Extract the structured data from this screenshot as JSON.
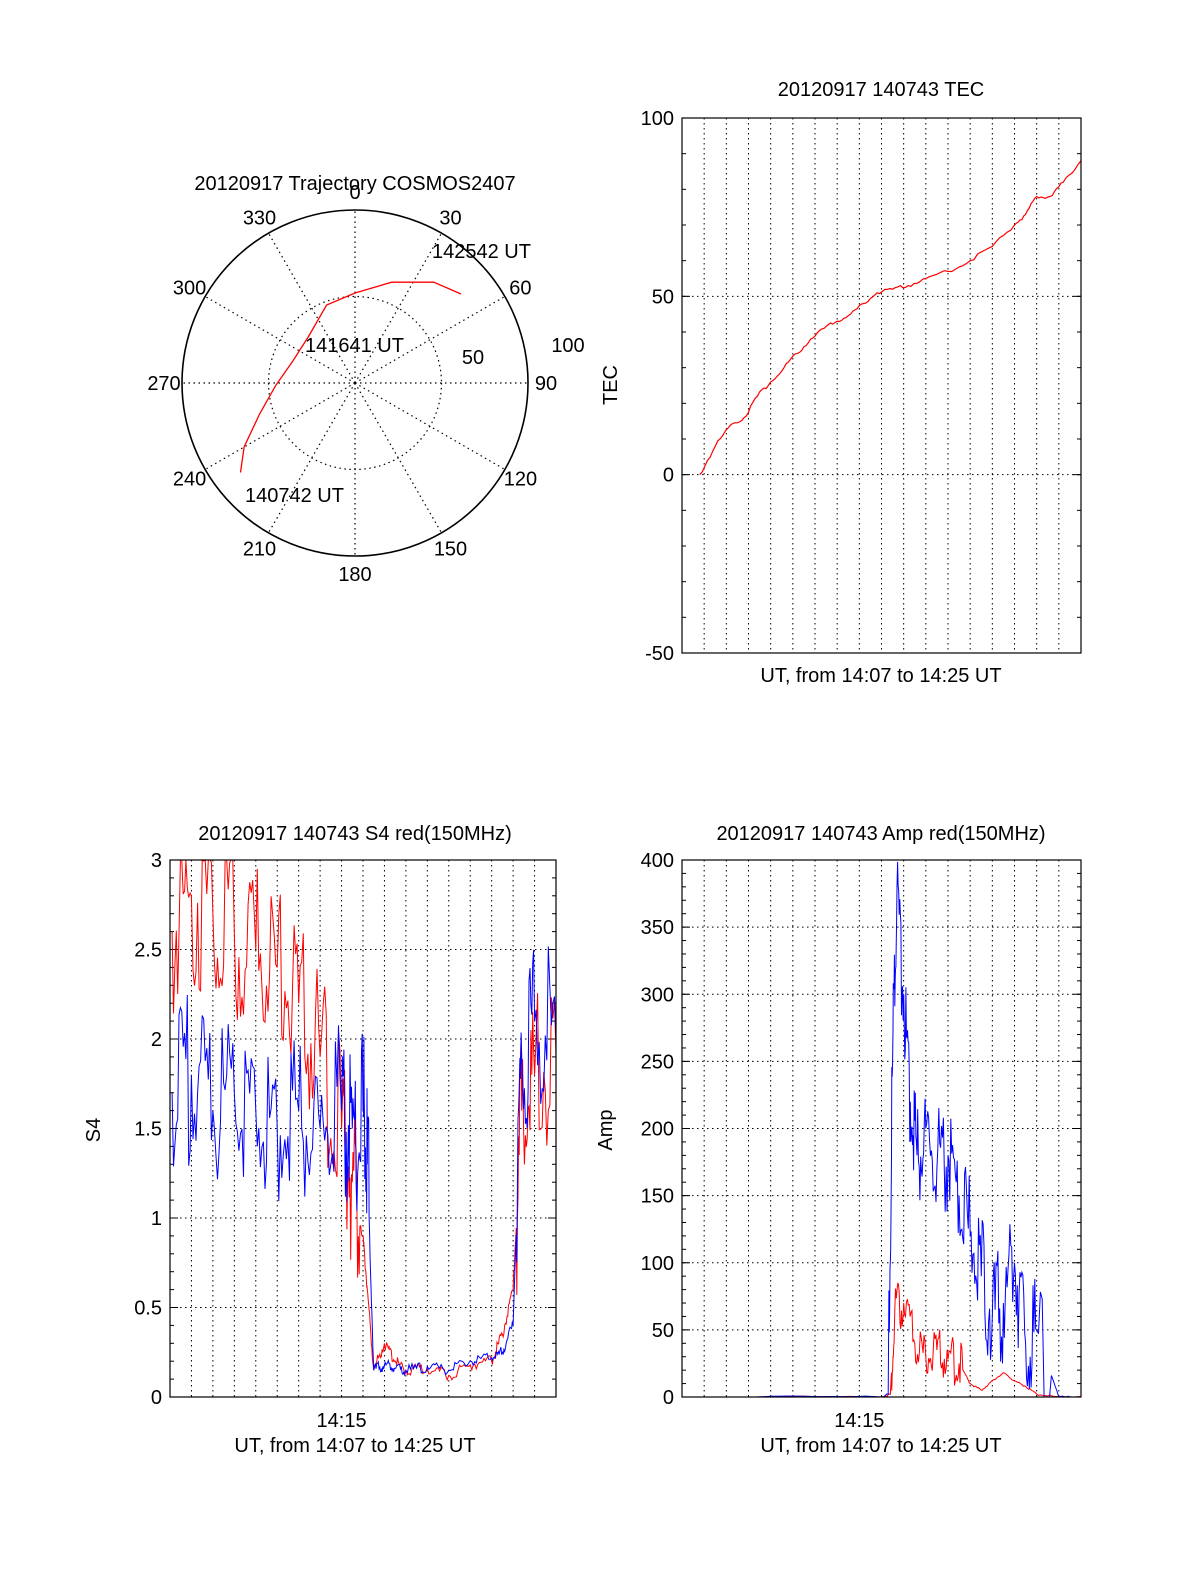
{
  "chart_data": [
    {
      "type": "polar",
      "title": "20120917 Trajectory COSMOS2407",
      "azimuth_labels": [
        "0",
        "30",
        "60",
        "90",
        "120",
        "150",
        "180",
        "210",
        "240",
        "270",
        "300",
        "330"
      ],
      "radial_labels": [
        "50",
        "100"
      ],
      "rlim": [
        0,
        100
      ],
      "trajectory": [
        {
          "az": 232,
          "r": 84
        },
        {
          "az": 240,
          "r": 74
        },
        {
          "az": 252,
          "r": 58
        },
        {
          "az": 268,
          "r": 46
        },
        {
          "az": 290,
          "r": 38
        },
        {
          "az": 315,
          "r": 38
        },
        {
          "az": 340,
          "r": 48
        },
        {
          "az": 0,
          "r": 52
        },
        {
          "az": 20,
          "r": 62
        },
        {
          "az": 38,
          "r": 74
        },
        {
          "az": 50,
          "r": 80
        }
      ],
      "annotations": [
        "142542 UT",
        "141641 UT",
        "140742 UT"
      ],
      "colors": {
        "trajectory": "#ff0000"
      }
    },
    {
      "type": "line",
      "title": "20120917 140743 TEC",
      "xlabel": "UT, from 14:07 to 14:25 UT",
      "ylabel": "TEC",
      "xlim": [
        0,
        18
      ],
      "ylim": [
        -50,
        100
      ],
      "yticks": [
        "-50",
        "0",
        "50",
        "100"
      ],
      "series": [
        {
          "color": "#ff0000",
          "x": [
            0.8,
            1.5,
            2.2,
            2.8,
            3.4,
            4.0,
            4.6,
            5.2,
            5.8,
            6.4,
            7.0,
            7.6,
            8.2,
            8.8,
            9.5,
            10.2,
            11.0,
            12.0,
            13.0,
            14.0,
            15.0,
            15.5,
            16.0,
            16.6,
            17.2,
            18.0
          ],
          "y": [
            0,
            8,
            14,
            16,
            22,
            26,
            30,
            34,
            38,
            41,
            43,
            45,
            48,
            51,
            52,
            53,
            55,
            57,
            60,
            64,
            70,
            73,
            78,
            78,
            82,
            88
          ]
        }
      ]
    },
    {
      "type": "line",
      "title": "20120917 140743 S4 red(150MHz)",
      "xlabel": "UT, from 14:07 to 14:25 UT",
      "ylabel": "S4",
      "xlim": [
        0,
        18
      ],
      "ylim": [
        0,
        3
      ],
      "xticks": [
        "14:15"
      ],
      "yticks": [
        "0",
        "0.5",
        "1",
        "1.5",
        "2",
        "2.5",
        "3"
      ],
      "series": [
        {
          "color": "#ff0000",
          "x": [
            0.1,
            1.0,
            2.0,
            3.0,
            4.0,
            5.0,
            6.0,
            7.0,
            8.0,
            8.5,
            9.0,
            9.2,
            9.5,
            10.0,
            10.5,
            11.0,
            12.0,
            13.0,
            14.0,
            15.0,
            15.5,
            16.0,
            16.4,
            17.0,
            18.0
          ],
          "y": [
            2.6,
            2.8,
            2.7,
            2.6,
            2.5,
            2.4,
            2.2,
            1.9,
            1.5,
            1.2,
            0.9,
            0.6,
            0.15,
            0.3,
            0.2,
            0.15,
            0.16,
            0.12,
            0.18,
            0.2,
            0.35,
            0.6,
            1.6,
            1.8,
            1.9
          ]
        },
        {
          "color": "#0000ff",
          "x": [
            0.1,
            1.0,
            2.0,
            3.0,
            4.0,
            5.0,
            6.0,
            7.0,
            8.0,
            8.5,
            9.0,
            9.2,
            9.5,
            10.0,
            10.5,
            11.0,
            12.0,
            13.0,
            14.0,
            15.0,
            15.5,
            16.0,
            16.4,
            17.0,
            18.0
          ],
          "y": [
            1.7,
            1.8,
            1.6,
            1.7,
            1.6,
            1.5,
            1.6,
            1.5,
            1.6,
            1.5,
            1.6,
            1.3,
            0.15,
            0.18,
            0.16,
            0.15,
            0.17,
            0.15,
            0.2,
            0.22,
            0.25,
            0.4,
            1.9,
            2.1,
            2.0
          ]
        }
      ]
    },
    {
      "type": "line",
      "title": "20120917 140743 Amp red(150MHz)",
      "xlabel": "UT, from 14:07 to 14:25 UT",
      "ylabel": "Amp",
      "xlim": [
        0,
        18
      ],
      "ylim": [
        0,
        400
      ],
      "xticks": [
        "14:15"
      ],
      "yticks": [
        "0",
        "50",
        "100",
        "150",
        "200",
        "250",
        "300",
        "350",
        "400"
      ],
      "series": [
        {
          "color": "#ff0000",
          "x": [
            0.5,
            9.0,
            9.4,
            9.6,
            10.0,
            10.5,
            11.0,
            11.5,
            12.0,
            12.5,
            13.0,
            13.5,
            14.0,
            14.5,
            15.0,
            15.5,
            16.0,
            17.0,
            18.0
          ],
          "y": [
            0,
            0,
            2,
            65,
            70,
            40,
            30,
            35,
            28,
            25,
            10,
            5,
            12,
            18,
            12,
            8,
            2,
            0,
            0
          ]
        },
        {
          "color": "#0000ff",
          "x": [
            0.5,
            9.0,
            9.3,
            9.5,
            9.7,
            10.0,
            10.3,
            10.6,
            11.0,
            11.5,
            12.0,
            12.5,
            13.0,
            13.5,
            14.0,
            14.5,
            15.0,
            15.5,
            16.0,
            17.0,
            18.0
          ],
          "y": [
            0,
            0,
            2,
            250,
            380,
            300,
            220,
            180,
            200,
            170,
            180,
            150,
            120,
            90,
            60,
            70,
            100,
            40,
            50,
            0,
            0
          ]
        }
      ]
    }
  ]
}
